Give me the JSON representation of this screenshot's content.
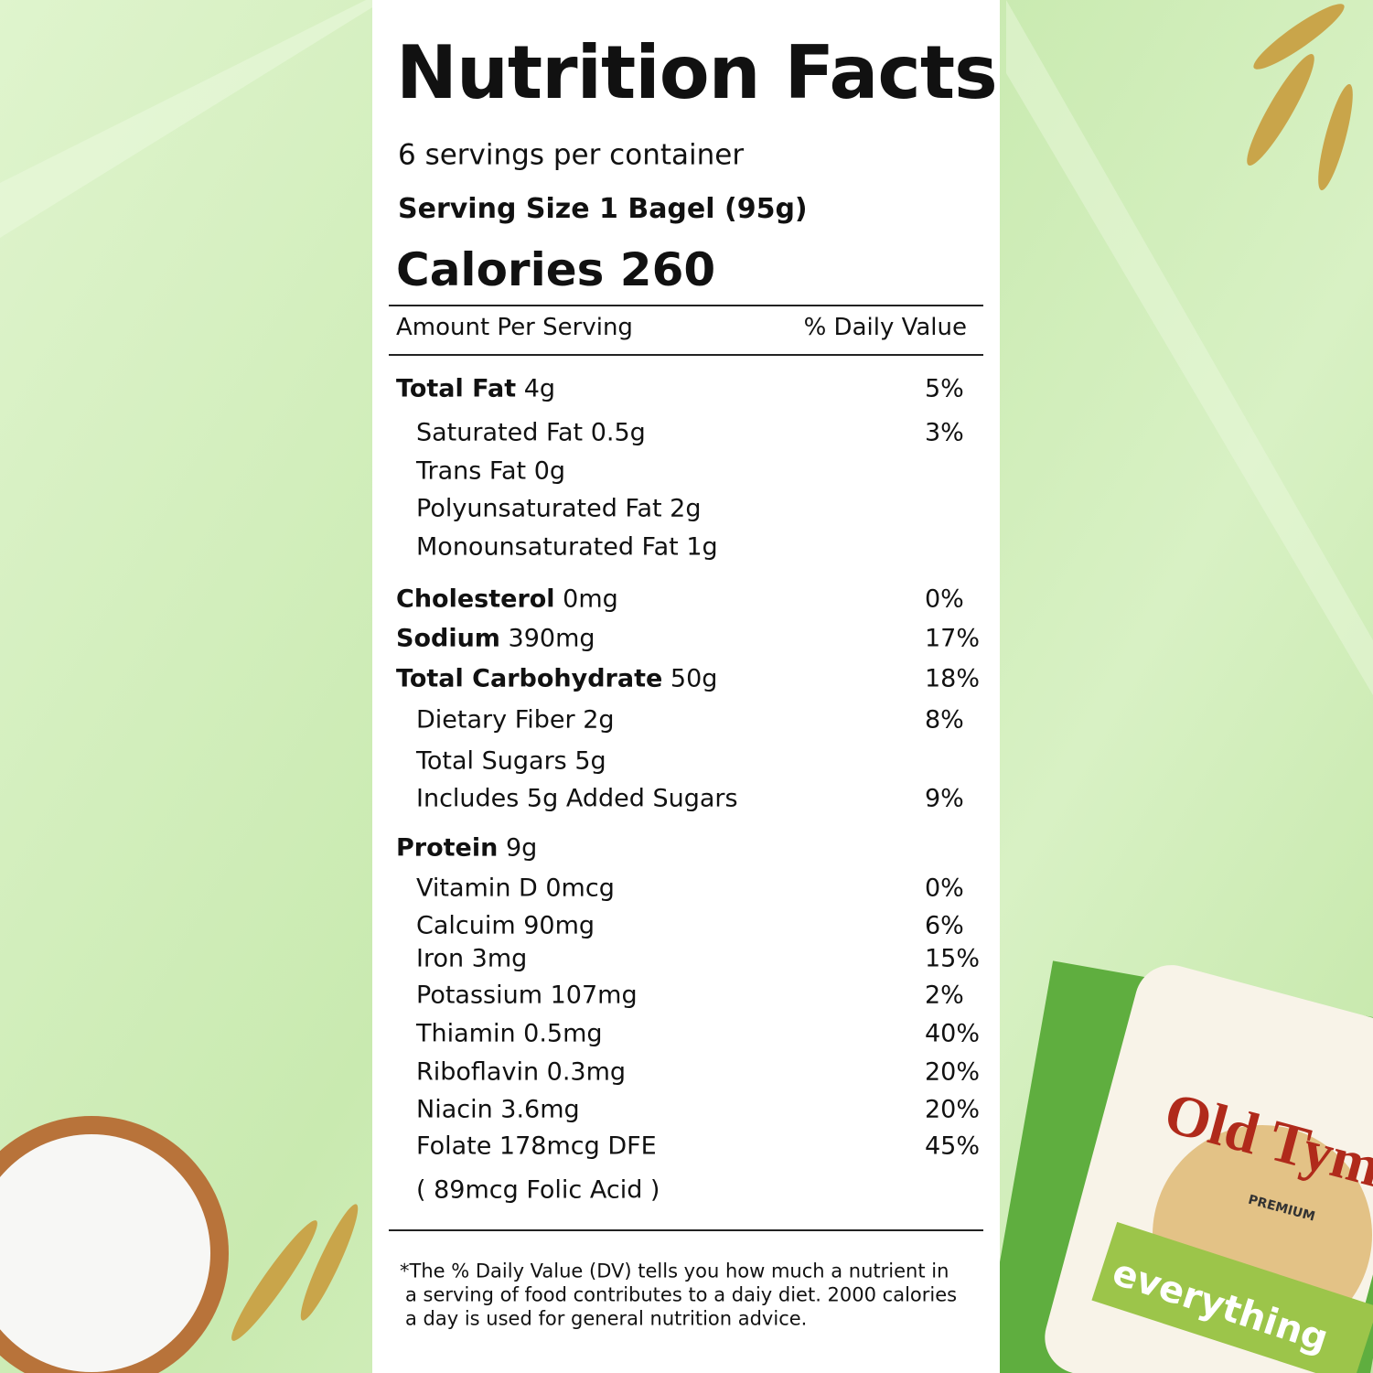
{
  "header": {
    "title": "Nutrition Facts",
    "servings": "6 servings per container",
    "serving_size": "Serving Size 1 Bagel (95g)",
    "calories": "Calories 260"
  },
  "column_header": {
    "left": "Amount Per Serving",
    "right": "% Daily Value"
  },
  "groups": [
    {
      "main": {
        "name": "Total Fat",
        "amount": "4g",
        "dv": "5%"
      },
      "subs": [
        {
          "label": "Saturated Fat 0.5g",
          "dv": "3%"
        },
        {
          "label": "Trans Fat 0g"
        },
        {
          "label": "Polyunsaturated Fat 2g"
        },
        {
          "label": "Monounsaturated Fat 1g"
        }
      ]
    },
    {
      "main": {
        "name": "Cholesterol",
        "amount": "0mg",
        "dv": "0%"
      },
      "subs": []
    },
    {
      "main": {
        "name": "Sodium",
        "amount": "390mg",
        "dv": "17%"
      },
      "subs": []
    },
    {
      "main": {
        "name": "Total Carbohydrate",
        "amount": "50g",
        "dv": "18%"
      },
      "subs": [
        {
          "label": "Dietary Fiber 2g",
          "dv": "8%"
        },
        {
          "label": "Total Sugars 5g"
        },
        {
          "label": "Includes 5g Added Sugars",
          "dv": "9%"
        }
      ]
    },
    {
      "main": {
        "name": "Protein",
        "amount": "9g"
      },
      "subs": [
        {
          "label": "Vitamin D 0mcg",
          "dv": "0%"
        },
        {
          "label": "Calcuim 90mg",
          "dv": "6%"
        },
        {
          "label": "Iron 3mg",
          "dv": "15%"
        },
        {
          "label": "Potassium 107mg",
          "dv": "2%"
        },
        {
          "label": "Thiamin 0.5mg",
          "dv": "40%"
        },
        {
          "label": "Riboflavin 0.3mg",
          "dv": "20%"
        },
        {
          "label": "Niacin 3.6mg",
          "dv": "20%"
        },
        {
          "label": "Folate 178mcg DFE",
          "dv": "45%"
        },
        {
          "label": "( 89mcg Folic Acid )"
        }
      ]
    }
  ],
  "footnote": [
    "*The % Daily Value (DV) tells you how much a nutrient in",
    "a serving of food contributes to a daiy diet. 2000 calories",
    "a day is used for general nutrition advice."
  ],
  "package": {
    "brand": "Old Tyme",
    "tier": "PREMIUM",
    "flavor": "everything"
  }
}
